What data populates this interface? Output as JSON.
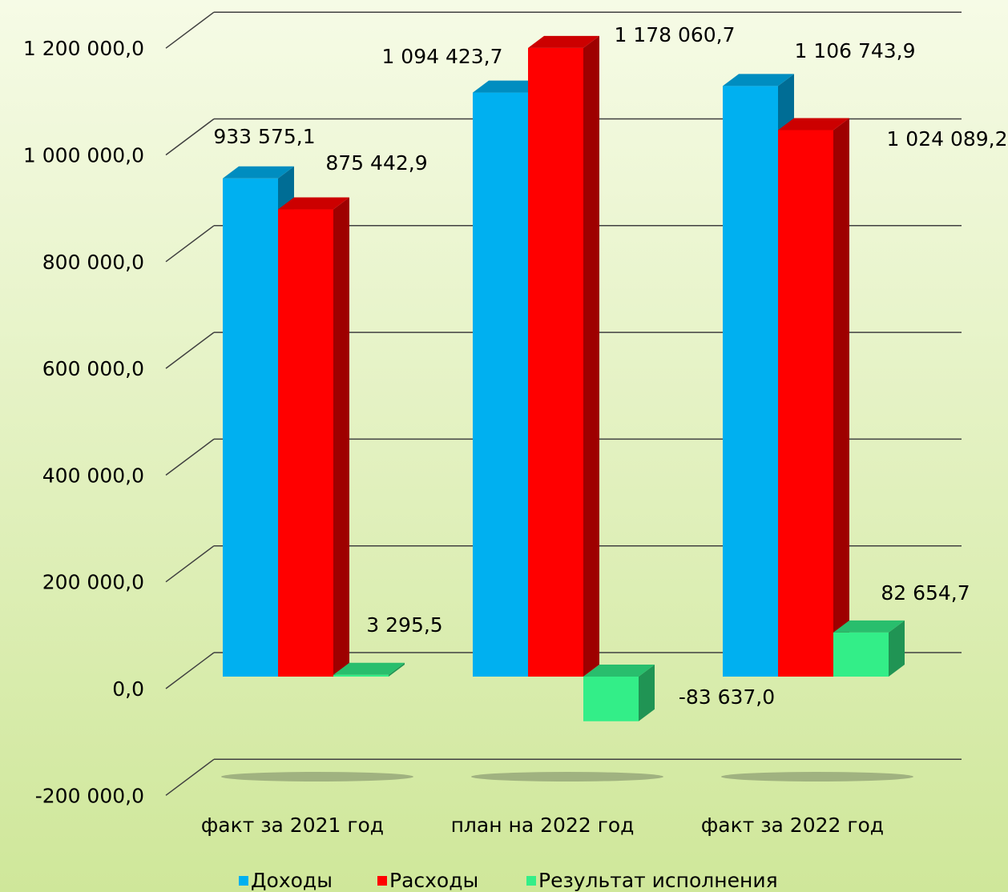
{
  "chart_data": {
    "type": "bar3d",
    "categories": [
      "факт за 2021 год",
      "план на 2022 год",
      "факт за  2022 год"
    ],
    "series": [
      {
        "name": "Доходы",
        "color": "#00b0f0",
        "values": [
          933575.1,
          1094423.7,
          1106743.9
        ],
        "value_labels": [
          "933 575,1",
          "1 094 423,7",
          "1 106 743,9"
        ]
      },
      {
        "name": "Расходы",
        "color": "#ff0000",
        "values": [
          875442.9,
          1178060.7,
          1024089.2
        ],
        "value_labels": [
          "875 442,9",
          "1 178 060,7",
          "1 024 089,2"
        ]
      },
      {
        "name": "Результат исполнения",
        "color": "#33ee88",
        "values": [
          3295.5,
          -83637.0,
          82654.7
        ],
        "value_labels": [
          "3 295,5",
          "-83 637,0",
          "82 654,7"
        ]
      }
    ],
    "ylim": [
      -200000,
      1200000
    ],
    "yticks": [
      {
        "value": -200000,
        "label": "-200 000,0"
      },
      {
        "value": 0,
        "label": "0,0"
      },
      {
        "value": 200000,
        "label": "200 000,0"
      },
      {
        "value": 400000,
        "label": "400 000,0"
      },
      {
        "value": 600000,
        "label": "600 000,0"
      },
      {
        "value": 800000,
        "label": "800 000,0"
      },
      {
        "value": 1000000,
        "label": "1 000 000,0"
      },
      {
        "value": 1200000,
        "label": "1 200 000,0"
      }
    ],
    "grid": true,
    "legend": "bottom"
  }
}
